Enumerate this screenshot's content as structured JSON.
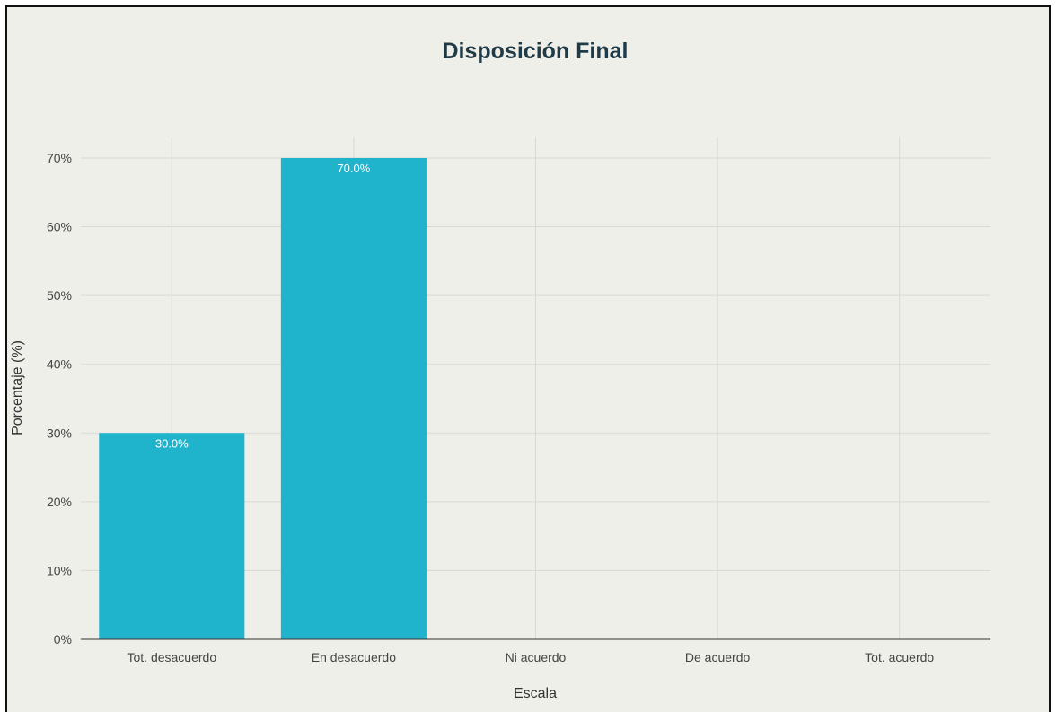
{
  "chart_data": {
    "type": "bar",
    "title": "Disposición Final",
    "xlabel": "Escala",
    "ylabel": "Porcentaje (%)",
    "categories": [
      "Tot. desacuerdo",
      "En desacuerdo",
      "Ni acuerdo",
      "De acuerdo",
      "Tot. acuerdo"
    ],
    "values": [
      30,
      70,
      0,
      0,
      0
    ],
    "value_labels": [
      "30.0%",
      "70.0%",
      "",
      "",
      ""
    ],
    "ylim": [
      0,
      73
    ],
    "yticks": [
      0,
      10,
      20,
      30,
      40,
      50,
      60,
      70
    ],
    "ytick_labels": [
      "0%",
      "10%",
      "20%",
      "30%",
      "40%",
      "50%",
      "60%",
      "70%"
    ],
    "grid": true,
    "bar_color": "#20b3cc",
    "legend": "none"
  }
}
